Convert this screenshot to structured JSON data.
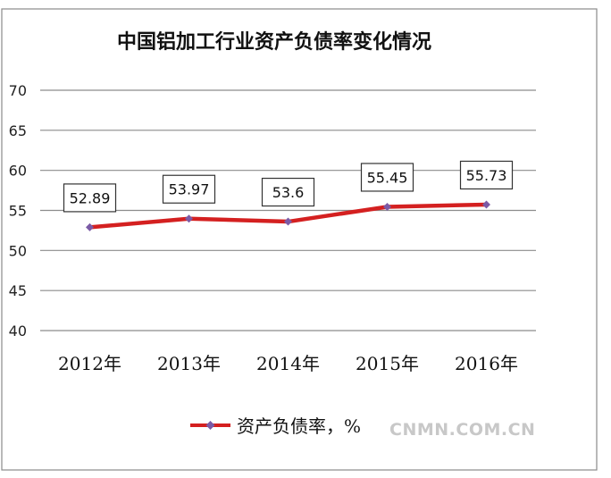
{
  "chart_data": {
    "type": "line",
    "title": "中国铝加工行业资产负债率变化情况",
    "categories": [
      "2012年",
      "2013年",
      "2014年",
      "2015年",
      "2016年"
    ],
    "series": [
      {
        "name": "资产负债率，%",
        "values": [
          52.89,
          53.97,
          53.6,
          55.45,
          55.73
        ],
        "color": "#d42020",
        "marker_color": "#7b5aa6"
      }
    ],
    "data_labels": [
      "52.89",
      "53.97",
      "53.6",
      "55.45",
      "55.73"
    ],
    "ylim": [
      40,
      70
    ],
    "yticks": [
      40,
      45,
      50,
      55,
      60,
      65,
      70
    ],
    "grid": true,
    "legend": "bottom"
  },
  "watermark": "CNMN.COM.CN"
}
